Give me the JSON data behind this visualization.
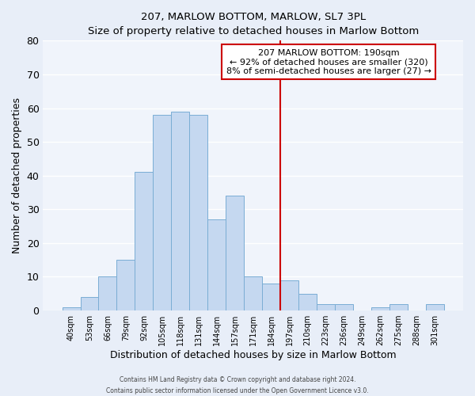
{
  "title": "207, MARLOW BOTTOM, MARLOW, SL7 3PL",
  "subtitle": "Size of property relative to detached houses in Marlow Bottom",
  "xlabel": "Distribution of detached houses by size in Marlow Bottom",
  "ylabel": "Number of detached properties",
  "bar_labels": [
    "40sqm",
    "53sqm",
    "66sqm",
    "79sqm",
    "92sqm",
    "105sqm",
    "118sqm",
    "131sqm",
    "144sqm",
    "157sqm",
    "171sqm",
    "184sqm",
    "197sqm",
    "210sqm",
    "223sqm",
    "236sqm",
    "249sqm",
    "262sqm",
    "275sqm",
    "288sqm",
    "301sqm"
  ],
  "bar_values": [
    1,
    4,
    10,
    15,
    41,
    58,
    59,
    58,
    27,
    34,
    10,
    8,
    9,
    5,
    2,
    2,
    0,
    1,
    2,
    0,
    2
  ],
  "bar_color": "#c5d8f0",
  "bar_edge_color": "#7aadd4",
  "vline_x_index": 12,
  "vline_color": "#cc0000",
  "annotation_title": "207 MARLOW BOTTOM: 190sqm",
  "annotation_line1": "← 92% of detached houses are smaller (320)",
  "annotation_line2": "8% of semi-detached houses are larger (27) →",
  "annotation_box_color": "#cc0000",
  "annotation_bg": "#ffffff",
  "ylim": [
    0,
    80
  ],
  "yticks": [
    0,
    10,
    20,
    30,
    40,
    50,
    60,
    70,
    80
  ],
  "bg_color": "#e8eef8",
  "plot_bg_color": "#f0f4fb",
  "footer_line1": "Contains HM Land Registry data © Crown copyright and database right 2024.",
  "footer_line2": "Contains public sector information licensed under the Open Government Licence v3.0."
}
